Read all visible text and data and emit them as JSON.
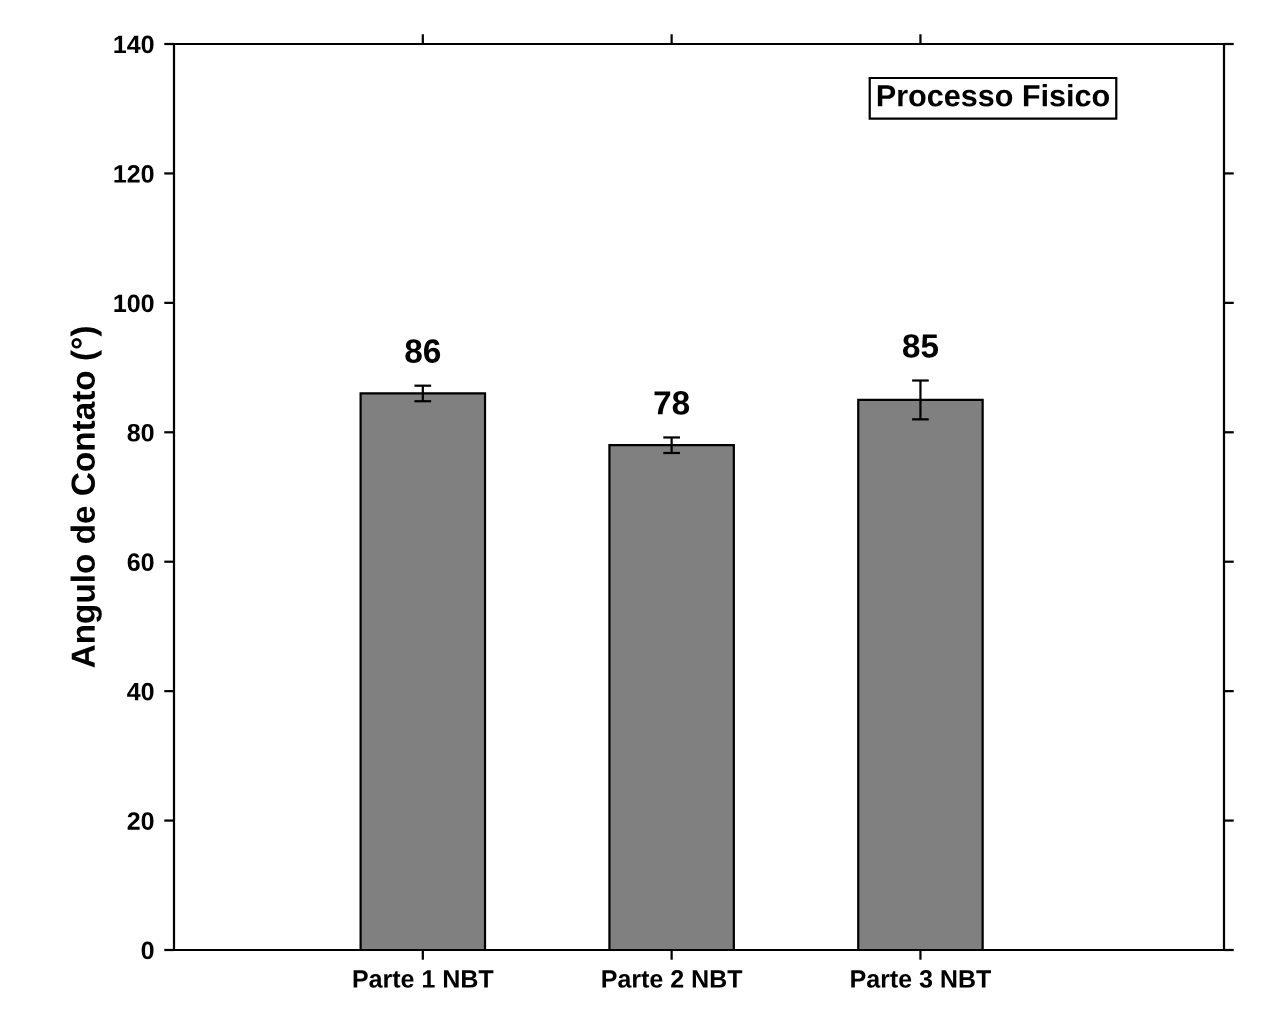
{
  "chart_data": {
    "type": "bar",
    "ylabel": "Angulo de Contato (°)",
    "categories": [
      "Parte 1 NBT",
      "Parte 2 NBT",
      "Parte 3 NBT"
    ],
    "values": [
      86,
      78,
      85
    ],
    "errors": [
      1.2,
      1.2,
      3
    ],
    "color": "#808080",
    "ylim": [
      0,
      140
    ],
    "yticks": [
      0,
      20,
      40,
      60,
      80,
      100,
      120,
      140
    ],
    "data_labels": true,
    "grid": false,
    "annotations": [
      "Processo Fisico"
    ]
  }
}
